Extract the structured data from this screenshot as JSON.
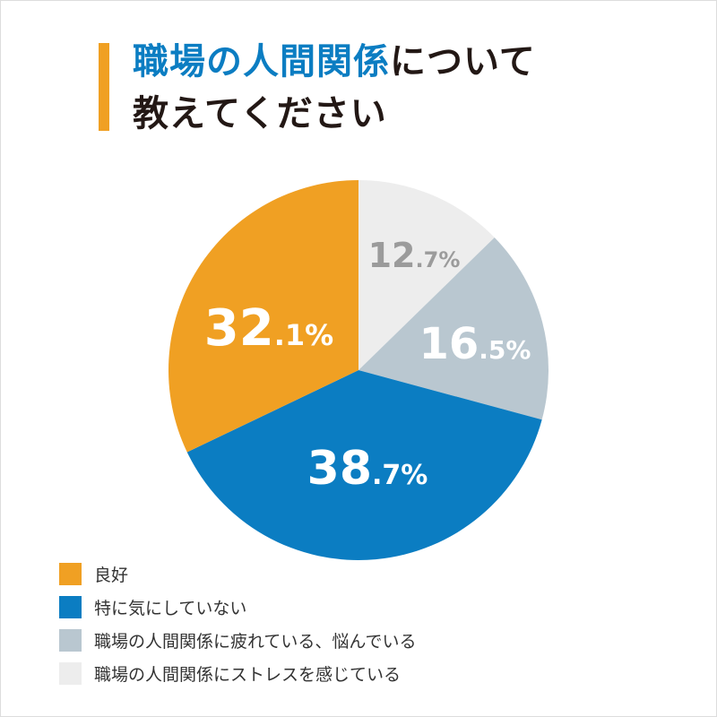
{
  "title": {
    "highlight": "職場の人間関係",
    "rest_line1": "について",
    "line2": "教えてください"
  },
  "chart_data": {
    "type": "pie",
    "start": "12 o'clock, clockwise",
    "slices": [
      {
        "label": "職場の人間関係にストレスを感じている",
        "value": 12.7,
        "int": "12",
        "dec": ".7%",
        "color": "#EDEDED",
        "text_color": "#9B9B9B"
      },
      {
        "label": "職場の人間関係に疲れている、悩んでいる",
        "value": 16.5,
        "int": "16",
        "dec": ".5%",
        "color": "#B9C7D0",
        "text_color": "#FFFFFF"
      },
      {
        "label": "特に気にしていない",
        "value": 38.7,
        "int": "38",
        "dec": ".7%",
        "color": "#0B7DC2",
        "text_color": "#FFFFFF"
      },
      {
        "label": "良好",
        "value": 32.1,
        "int": "32",
        "dec": ".1%",
        "color": "#F0A023",
        "text_color": "#FFFFFF"
      }
    ],
    "legend_order": [
      "良好",
      "特に気にしていない",
      "職場の人間関係に疲れている、悩んでいる",
      "職場の人間関係にストレスを感じている"
    ],
    "legend_colors": [
      "#F0A023",
      "#0B7DC2",
      "#B9C7D0",
      "#EDEDED"
    ],
    "legend_placement": "bottom-left"
  }
}
